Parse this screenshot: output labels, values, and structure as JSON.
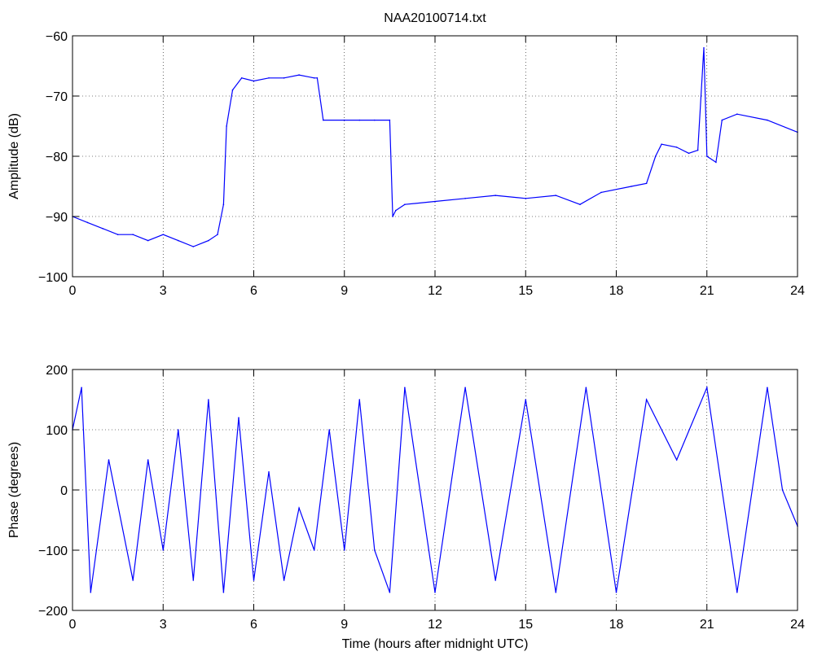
{
  "chart_data": [
    {
      "type": "line",
      "title": "NAA20100714.txt",
      "xlabel": "",
      "ylabel": "Amplitude (dB)",
      "xlim": [
        0,
        24
      ],
      "ylim": [
        -100,
        -60
      ],
      "xticks": [
        "0",
        "3",
        "6",
        "9",
        "12",
        "15",
        "18",
        "21",
        "24"
      ],
      "yticks": [
        "-100",
        "-90",
        "-80",
        "-70",
        "-60"
      ],
      "grid": true,
      "line_color": "#0000ff",
      "series": [
        {
          "x": [
            0,
            0.5,
            1,
            1.5,
            2,
            2.5,
            3,
            3.5,
            4,
            4.5,
            4.8,
            5.0,
            5.1,
            5.3,
            5.6,
            6.0,
            6.5,
            7.0,
            7.5,
            8.0,
            8.1,
            8.3,
            9.0,
            9.5,
            10.0,
            10.5,
            10.6,
            10.7,
            11.0,
            12.0,
            13.0,
            14.0,
            15.0,
            16.0,
            16.8,
            17.5,
            18.5,
            19.0,
            19.3,
            19.5,
            20.0,
            20.4,
            20.7,
            20.9,
            21.0,
            21.3,
            21.5,
            22.0,
            23.0,
            24.0
          ],
          "values": [
            -90,
            -91,
            -92,
            -93,
            -93,
            -94,
            -93,
            -94,
            -95,
            -94,
            -93,
            -88,
            -75,
            -69,
            -67,
            -67.5,
            -67,
            -67,
            -66.5,
            -67,
            -67,
            -74,
            -74,
            -74,
            -74,
            -74,
            -90,
            -89,
            -88,
            -87.5,
            -87,
            -86.5,
            -87,
            -86.5,
            -88,
            -86,
            -85,
            -84.5,
            -80,
            -78,
            -78.5,
            -79.5,
            -79,
            -62,
            -80,
            -81,
            -74,
            -73,
            -74,
            -76
          ]
        }
      ]
    },
    {
      "type": "line",
      "title": "",
      "xlabel": "Time (hours after midnight UTC)",
      "ylabel": "Phase (degrees)",
      "xlim": [
        0,
        24
      ],
      "ylim": [
        -200,
        200
      ],
      "xticks": [
        "0",
        "3",
        "6",
        "9",
        "12",
        "15",
        "18",
        "21",
        "24"
      ],
      "yticks": [
        "-200",
        "-100",
        "0",
        "100",
        "200"
      ],
      "grid": true,
      "line_color": "#0000ff",
      "series": [
        {
          "x": [
            0,
            0.3,
            0.6,
            1.2,
            2.0,
            2.5,
            3.0,
            3.5,
            4.0,
            4.5,
            5.0,
            5.5,
            6.0,
            6.5,
            7.0,
            7.5,
            8.0,
            8.5,
            9.0,
            9.5,
            10.0,
            10.5,
            11.0,
            12.0,
            13.0,
            14.0,
            15.0,
            16.0,
            17.0,
            18.0,
            19.0,
            20.0,
            21.0,
            22.0,
            23.0,
            23.5,
            24.0
          ],
          "values": [
            100,
            170,
            -170,
            50,
            -150,
            50,
            -100,
            100,
            -150,
            150,
            -170,
            120,
            -150,
            30,
            -150,
            -30,
            -100,
            100,
            -100,
            150,
            -100,
            -170,
            170,
            -170,
            170,
            -150,
            150,
            -170,
            170,
            -170,
            150,
            50,
            170,
            -170,
            170,
            0,
            -60
          ]
        }
      ]
    }
  ]
}
